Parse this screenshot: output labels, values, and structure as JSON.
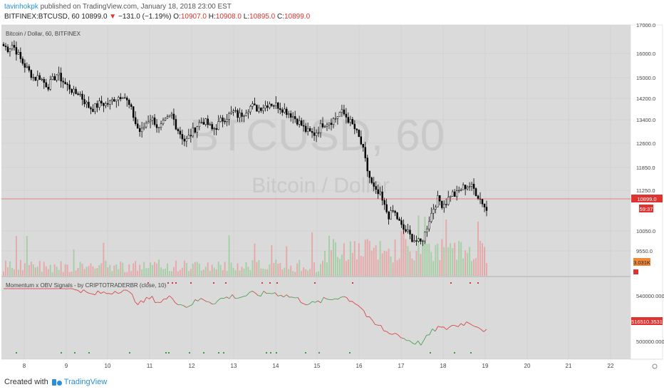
{
  "header": {
    "author": "tavinhokpk",
    "published": "published on TradingView.com, January 18, 2018 23:00 EST",
    "symbol": "BITFINEX:BTCUSD, 60",
    "last": "10899.0",
    "change": "−131.0 (−1.19%)",
    "o_label": "O:",
    "o": "10907.0",
    "h_label": "H:",
    "h": "10908.0",
    "l_label": "L:",
    "l": "10895.0",
    "c_label": "C:",
    "c": "10899.0"
  },
  "watermark": {
    "big": "BTCUSD, 60",
    "small": "Bitcoin / Dollar"
  },
  "pane_label": "Bitcoin / Dollar, 60, BITFINEX",
  "indicator_label": "Momentum x OBV Signals - by CRIPTOTRADERBR (close, 10)",
  "price_axis": [
    "17000.0",
    "16000.0",
    "15000.0",
    "14200.0",
    "13400.0",
    "12600.0",
    "11850.0",
    "11250.0",
    "10050.0",
    "9550.0"
  ],
  "price_marker": "10899.0",
  "countdown_marker": "59:37",
  "volume_marker": "3.031K",
  "indicator_axis": [
    "540000.0000",
    "500000.0000"
  ],
  "indicator_marker": "516510.3531",
  "time_axis": [
    "8",
    "9",
    "10",
    "11",
    "12",
    "13",
    "14",
    "15",
    "16",
    "17",
    "18",
    "19",
    "20",
    "21",
    "22"
  ],
  "footer": {
    "created": "Created with",
    "brand": "TradingView"
  },
  "colors": {
    "up": "#3c9b45",
    "down": "#d9343a",
    "bg": "#dadada",
    "marker": "#e0332f",
    "vol_marker": "#f0893a"
  },
  "chart_data": {
    "type": "candlestick",
    "symbol": "BTCUSD",
    "interval": "60",
    "ylim": [
      9200,
      17100
    ],
    "close_path": [
      16400,
      16300,
      16450,
      16200,
      15900,
      15700,
      15500,
      15300,
      15400,
      15200,
      15050,
      15250,
      15450,
      15300,
      15100,
      15000,
      14800,
      14850,
      14600,
      14400,
      14300,
      14400,
      14500,
      14450,
      14500,
      14650,
      14700,
      14800,
      14500,
      14200,
      13700,
      13500,
      13800,
      14000,
      13900,
      13600,
      13800,
      13950,
      14100,
      13700,
      13450,
      13200,
      13400,
      13600,
      13800,
      13900,
      13800,
      13600,
      13700,
      13900,
      14000,
      14100,
      14200,
      14050,
      14150,
      14300,
      14400,
      14300,
      14350,
      14400,
      14500,
      14450,
      14400,
      14300,
      14200,
      14100,
      13950,
      13800,
      13600,
      13500,
      13450,
      13600,
      13800,
      13850,
      13900,
      14000,
      14200,
      14100,
      13900,
      13700,
      13400,
      13000,
      12300,
      11800,
      11500,
      11400,
      11000,
      10700,
      10900,
      10600,
      10300,
      10200,
      10000,
      9900,
      9800,
      10100,
      10600,
      11000,
      11300,
      11100,
      11200,
      11500,
      11400,
      11600,
      11700,
      11750,
      11650,
      11400,
      11200,
      10900
    ],
    "indicator_series_shape": "momentum line, green when rising, red when falling"
  }
}
